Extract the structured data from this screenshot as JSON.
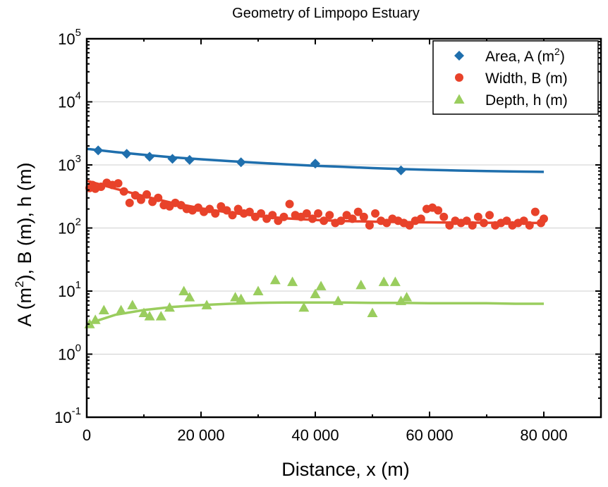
{
  "chart_data": {
    "type": "scatter",
    "title": "Geometry of Limpopo Estuary",
    "xlabel": "Distance, x (m)",
    "ylabel": "A (m²), B (m), h (m)",
    "xlim": [
      0,
      90000
    ],
    "ylim": [
      0.1,
      100000
    ],
    "yscale": "log",
    "grid": true,
    "legend_position": "top-right",
    "x_ticks": [
      0,
      20000,
      40000,
      60000,
      80000
    ],
    "x_tick_labels": [
      "0",
      "20 000",
      "40 000",
      "60 000",
      "80 000"
    ],
    "y_ticks": [
      {
        "value": 0.1,
        "base": "10",
        "exp": "-1"
      },
      {
        "value": 1,
        "base": "10",
        "exp": "0"
      },
      {
        "value": 10,
        "base": "10",
        "exp": "1"
      },
      {
        "value": 100,
        "base": "10",
        "exp": "2"
      },
      {
        "value": 1000,
        "base": "10",
        "exp": "3"
      },
      {
        "value": 10000,
        "base": "10",
        "exp": "4"
      },
      {
        "value": 100000,
        "base": "10",
        "exp": "5"
      }
    ],
    "series": [
      {
        "name": "Area, A (m²)",
        "legend_text": "Area, A (m",
        "legend_sup": "2",
        "legend_tail": ")",
        "color": "#1f6fad",
        "marker": "diamond",
        "x": [
          2000,
          7000,
          11000,
          15000,
          18000,
          27000,
          40000,
          55000
        ],
        "y": [
          1700,
          1500,
          1350,
          1250,
          1200,
          1100,
          1050,
          820
        ],
        "fit": {
          "x": [
            0,
            5000,
            10000,
            15000,
            20000,
            25000,
            30000,
            35000,
            40000,
            45000,
            50000,
            55000,
            60000,
            65000,
            70000,
            75000,
            80000
          ],
          "y": [
            1800,
            1600,
            1450,
            1320,
            1230,
            1150,
            1080,
            1020,
            970,
            930,
            890,
            860,
            835,
            815,
            800,
            785,
            775
          ]
        }
      },
      {
        "name": "Width, B (m)",
        "legend_text": "Width, B (m)",
        "color": "#e8422a",
        "marker": "circle",
        "x": [
          500,
          1000,
          1500,
          2500,
          3500,
          4500,
          5500,
          6500,
          7500,
          8500,
          9500,
          10500,
          11500,
          12500,
          13500,
          14500,
          15500,
          16500,
          17500,
          18500,
          19500,
          20500,
          21500,
          22500,
          23500,
          24500,
          25500,
          26500,
          27500,
          28500,
          29500,
          30500,
          31500,
          32500,
          33500,
          34500,
          35500,
          36500,
          37500,
          38500,
          39500,
          40500,
          41500,
          42500,
          43500,
          44500,
          45500,
          46500,
          47500,
          48500,
          49500,
          50500,
          51500,
          52500,
          53500,
          54500,
          55500,
          56500,
          57500,
          58500,
          59500,
          60500,
          61500,
          62500,
          63500,
          64500,
          65500,
          66500,
          67500,
          68500,
          69500,
          70500,
          71500,
          72500,
          73500,
          74500,
          75500,
          76500,
          77500,
          78500,
          79500,
          80000
        ],
        "y": [
          430,
          480,
          420,
          450,
          520,
          480,
          510,
          380,
          250,
          330,
          280,
          340,
          260,
          300,
          230,
          220,
          250,
          230,
          200,
          190,
          210,
          180,
          200,
          170,
          220,
          190,
          160,
          200,
          170,
          180,
          150,
          170,
          140,
          160,
          130,
          150,
          240,
          160,
          150,
          170,
          140,
          170,
          130,
          160,
          120,
          130,
          160,
          140,
          180,
          150,
          110,
          170,
          130,
          120,
          140,
          130,
          120,
          110,
          130,
          140,
          200,
          210,
          190,
          150,
          110,
          130,
          120,
          130,
          110,
          150,
          120,
          160,
          110,
          120,
          130,
          110,
          120,
          130,
          110,
          180,
          120,
          140
        ],
        "fit": {
          "x": [
            0,
            5000,
            10000,
            15000,
            20000,
            25000,
            30000,
            35000,
            40000,
            45000,
            50000,
            55000,
            60000,
            65000,
            70000,
            75000,
            80000
          ],
          "y": [
            560,
            420,
            320,
            250,
            205,
            175,
            155,
            142,
            134,
            129,
            126,
            124,
            123,
            122,
            121,
            121,
            120
          ]
        }
      },
      {
        "name": "Depth, h (m)",
        "legend_text": "Depth, h (m)",
        "color": "#9acd5e",
        "marker": "triangle",
        "x": [
          500,
          1500,
          3000,
          6000,
          8000,
          10000,
          11000,
          13000,
          14500,
          17000,
          18000,
          21000,
          26000,
          27000,
          30000,
          33000,
          36000,
          38000,
          40000,
          41000,
          44000,
          48000,
          50000,
          52000,
          54000,
          55000,
          56000
        ],
        "y": [
          3.0,
          3.5,
          5.0,
          5.0,
          6.0,
          4.5,
          4.0,
          4.0,
          5.5,
          10.0,
          8.0,
          6.0,
          8.0,
          7.5,
          10.0,
          15.0,
          14.0,
          5.5,
          9.0,
          12.0,
          7.0,
          12.5,
          4.5,
          14.0,
          14.0,
          7.0,
          8.0
        ],
        "fit": {
          "x": [
            0,
            5000,
            10000,
            15000,
            20000,
            25000,
            30000,
            35000,
            40000,
            45000,
            50000,
            55000,
            60000,
            65000,
            70000,
            75000,
            80000
          ],
          "y": [
            3.0,
            4.2,
            5.0,
            5.6,
            6.0,
            6.3,
            6.5,
            6.6,
            6.6,
            6.6,
            6.5,
            6.5,
            6.4,
            6.4,
            6.4,
            6.3,
            6.3
          ]
        }
      }
    ]
  }
}
